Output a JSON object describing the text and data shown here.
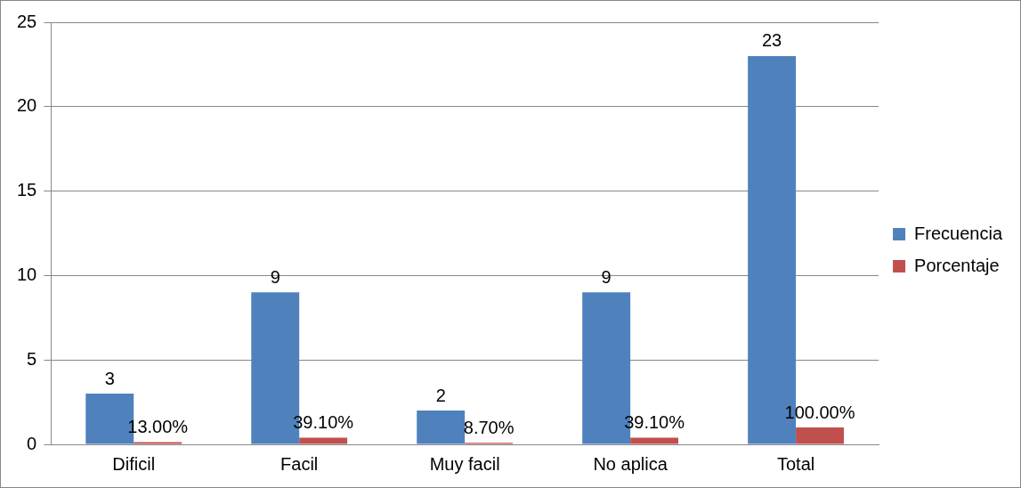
{
  "chart_data": {
    "type": "bar",
    "categories": [
      "Dificil",
      "Facil",
      "Muy facil",
      "No aplica",
      "Total"
    ],
    "series": [
      {
        "name": "Frecuencia",
        "color": "#4f81bd",
        "values": [
          3,
          9,
          2,
          9,
          23
        ],
        "value_labels": [
          "3",
          "9",
          "2",
          "9",
          "23"
        ]
      },
      {
        "name": "Porcentaje",
        "color": "#c0504d",
        "values": [
          0.13,
          0.391,
          0.087,
          0.391,
          1
        ],
        "value_labels": [
          "13.00%",
          "39.10%",
          "8.70%",
          "39.10%",
          "100.00%"
        ]
      }
    ],
    "ylim": [
      0,
      25
    ],
    "yticks": [
      0,
      5,
      10,
      15,
      20,
      25
    ],
    "grid": "y",
    "legend": "right"
  }
}
